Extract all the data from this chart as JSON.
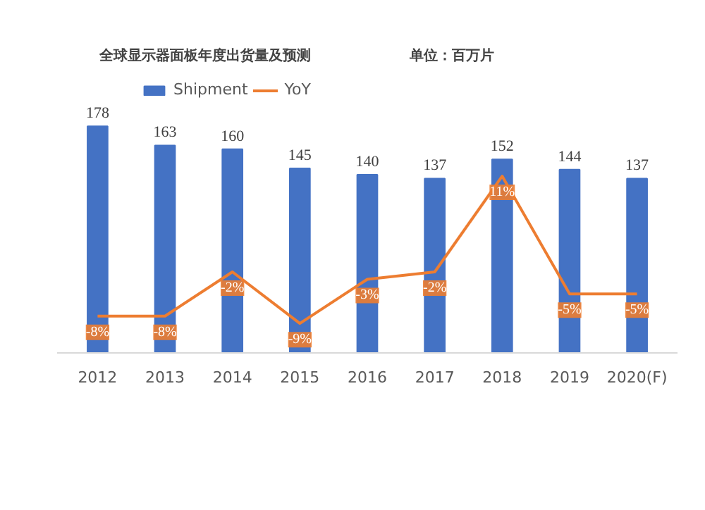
{
  "chart_data": {
    "type": "bar",
    "title": "全球显示器面板年度出货量及预测",
    "subtitle": "单位：百万片",
    "categories": [
      "2012",
      "2013",
      "2014",
      "2015",
      "2016",
      "2017",
      "2018",
      "2019",
      "2020(F)"
    ],
    "series": [
      {
        "name": "Shipment",
        "color": "#4472c4",
        "values": [
          178,
          163,
          160,
          145,
          140,
          137,
          152,
          144,
          137
        ]
      },
      {
        "name": "YoY",
        "type": "line",
        "axis": "y2",
        "color": "#ed7d31",
        "values": [
          -8,
          -8,
          -2,
          -9,
          -3,
          -2,
          11,
          -5,
          -5
        ],
        "value_labels": [
          "-8%",
          "-8%",
          "-2%",
          "-9%",
          "-3%",
          "-2%",
          "11%",
          "-5%",
          "-5%"
        ]
      }
    ],
    "data_labels": true,
    "legend": "top",
    "grid": false,
    "marker": "none"
  }
}
